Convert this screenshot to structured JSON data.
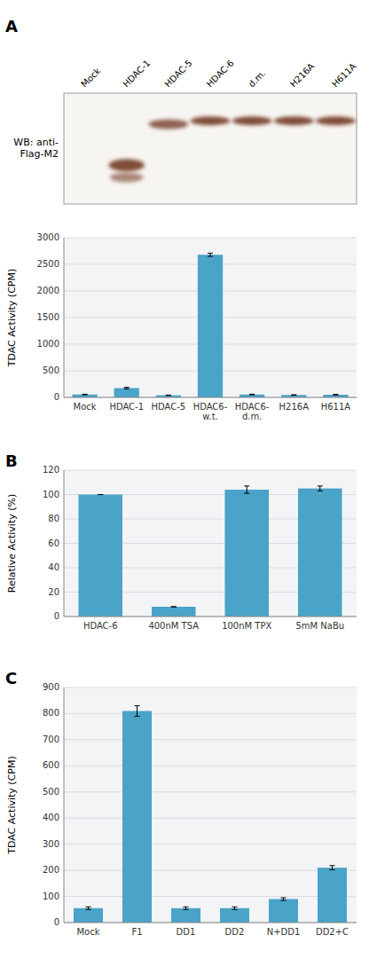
{
  "chart_data": [
    {
      "type": "blot",
      "title": "A",
      "ylabel": "WB: anti-\nFlag-M2",
      "categories": [
        "Mock",
        "HDAC-1",
        "HDAC-5",
        "HDAC-6",
        "d.m.",
        "H216A",
        "H611A"
      ],
      "color": "#6b3018"
    },
    {
      "type": "bar",
      "categories": [
        "Mock",
        "HDAC-1",
        "HDAC-5",
        "HDAC6-\nw.t.",
        "HDAC6-\nd.m.",
        "H216A",
        "H611A"
      ],
      "values": [
        55,
        175,
        40,
        2680,
        55,
        45,
        50
      ],
      "errors": [
        5,
        15,
        5,
        30,
        5,
        5,
        5
      ],
      "ylabel": "TDAC Activity (CPM)",
      "ylim": [
        0,
        3000
      ],
      "yticks": [
        0,
        500,
        1000,
        1500,
        2000,
        2500,
        3000
      ],
      "color": "#4aa3c8",
      "grid": true
    },
    {
      "type": "bar",
      "title": "B",
      "categories": [
        "HDAC-6",
        "400nM TSA",
        "100nM TPX",
        "5mM NaBu"
      ],
      "values": [
        100,
        8,
        104,
        105
      ],
      "errors": [
        0,
        0,
        3,
        2
      ],
      "ylabel": "Relative Activity (%)",
      "ylim": [
        0,
        120
      ],
      "yticks": [
        0,
        20,
        40,
        60,
        80,
        100,
        120
      ],
      "color": "#4aa3c8",
      "grid": true
    },
    {
      "type": "bar",
      "title": "C",
      "categories": [
        "Mock",
        "F1",
        "DD1",
        "DD2",
        "N+DD1",
        "DD2+C"
      ],
      "values": [
        55,
        810,
        55,
        55,
        90,
        210
      ],
      "errors": [
        5,
        20,
        5,
        5,
        5,
        8
      ],
      "ylabel": "TDAC Activity (CPM)",
      "ylim": [
        0,
        900
      ],
      "yticks": [
        0,
        100,
        200,
        300,
        400,
        500,
        600,
        700,
        800,
        900
      ],
      "color": "#4aa3c8",
      "grid": true
    }
  ]
}
